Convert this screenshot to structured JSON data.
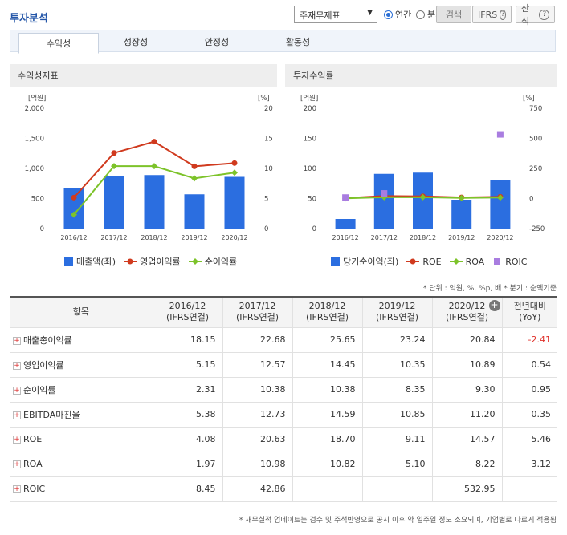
{
  "header": {
    "title": "투자분석",
    "statement_select": "주재무제표",
    "period_annual": "연간",
    "period_quarter": "분기",
    "search_label": "검색",
    "ifrs_label": "IFRS",
    "formula_label": "산식"
  },
  "tabs": [
    "수익성",
    "성장성",
    "안정성",
    "활동성"
  ],
  "left_panel": {
    "title": "수익성지표",
    "left_unit": "[억원]",
    "right_unit": "[%]",
    "legend": [
      "매출액(좌)",
      "영업이익률",
      "순이익률"
    ]
  },
  "right_panel": {
    "title": "투자수익률",
    "left_unit": "[억원]",
    "right_unit": "[%]",
    "legend": [
      "당기순이익(좌)",
      "ROE",
      "ROA",
      "ROIC"
    ]
  },
  "colors": {
    "bar": "#2b6ee0",
    "op_margin": "#d03a1e",
    "net_margin": "#7dc32a",
    "roe": "#d03a1e",
    "roa": "#7dc32a",
    "roic": "#a97de0"
  },
  "chart_data": [
    {
      "type": "bar",
      "categories": [
        "2016/12",
        "2017/12",
        "2018/12",
        "2019/12",
        "2020/12"
      ],
      "y_left_ticks": [
        "0",
        "500",
        "1,000",
        "1,500",
        "2,000"
      ],
      "y_right_ticks": [
        "0",
        "5",
        "10",
        "15",
        "20"
      ],
      "ylim_left": [
        0,
        2000
      ],
      "ylim_right": [
        0,
        20
      ],
      "series": [
        {
          "name": "매출액(좌)",
          "type": "bar",
          "axis": "left",
          "values": [
            680,
            880,
            890,
            570,
            860
          ]
        },
        {
          "name": "영업이익률",
          "type": "line",
          "axis": "right",
          "values": [
            5.15,
            12.57,
            14.45,
            10.35,
            10.89
          ]
        },
        {
          "name": "순이익률",
          "type": "line",
          "axis": "right",
          "values": [
            2.31,
            10.38,
            10.38,
            8.35,
            9.3
          ]
        }
      ]
    },
    {
      "type": "bar",
      "categories": [
        "2016/12",
        "2017/12",
        "2018/12",
        "2019/12",
        "2020/12"
      ],
      "y_left_ticks": [
        "0",
        "50",
        "100",
        "150",
        "200"
      ],
      "y_right_ticks": [
        "-250",
        "0",
        "250",
        "500",
        "750"
      ],
      "ylim_left": [
        0,
        200
      ],
      "ylim_right": [
        -250,
        750
      ],
      "series": [
        {
          "name": "당기순이익(좌)",
          "type": "bar",
          "axis": "left",
          "values": [
            16,
            91,
            93,
            48,
            80
          ]
        },
        {
          "name": "ROE",
          "type": "line",
          "axis": "right",
          "values": [
            4.08,
            20.63,
            18.7,
            9.11,
            14.57
          ]
        },
        {
          "name": "ROA",
          "type": "line",
          "axis": "right",
          "values": [
            1.97,
            10.98,
            10.82,
            5.1,
            8.22
          ]
        },
        {
          "name": "ROIC",
          "type": "scatter",
          "axis": "right",
          "values": [
            8.45,
            42.86,
            null,
            null,
            532.95
          ]
        }
      ]
    }
  ],
  "unit_note": "* 단위 : 억원, %, %p, 배  * 분기 : 순액기준",
  "table": {
    "header_item": "항목",
    "columns": [
      {
        "year": "2016/12",
        "basis": "(IFRS연결)"
      },
      {
        "year": "2017/12",
        "basis": "(IFRS연결)"
      },
      {
        "year": "2018/12",
        "basis": "(IFRS연결)"
      },
      {
        "year": "2019/12",
        "basis": "(IFRS연결)"
      },
      {
        "year": "2020/12",
        "basis": "(IFRS연결)"
      }
    ],
    "yoy_header": "전년대비",
    "yoy_sub": "(YoY)",
    "rows": [
      {
        "label": "매출총이익률",
        "values": [
          "18.15",
          "22.68",
          "25.65",
          "23.24",
          "20.84"
        ],
        "yoy": "-2.41",
        "neg": true
      },
      {
        "label": "영업이익률",
        "values": [
          "5.15",
          "12.57",
          "14.45",
          "10.35",
          "10.89"
        ],
        "yoy": "0.54",
        "neg": false
      },
      {
        "label": "순이익률",
        "values": [
          "2.31",
          "10.38",
          "10.38",
          "8.35",
          "9.30"
        ],
        "yoy": "0.95",
        "neg": false
      },
      {
        "label": "EBITDA마진율",
        "values": [
          "5.38",
          "12.73",
          "14.59",
          "10.85",
          "11.20"
        ],
        "yoy": "0.35",
        "neg": false
      },
      {
        "label": "ROE",
        "values": [
          "4.08",
          "20.63",
          "18.70",
          "9.11",
          "14.57"
        ],
        "yoy": "5.46",
        "neg": false
      },
      {
        "label": "ROA",
        "values": [
          "1.97",
          "10.98",
          "10.82",
          "5.10",
          "8.22"
        ],
        "yoy": "3.12",
        "neg": false
      },
      {
        "label": "ROIC",
        "values": [
          "8.45",
          "42.86",
          "",
          "",
          "532.95"
        ],
        "yoy": "",
        "neg": false
      }
    ]
  },
  "footer_note": "* 재무실적 업데이트는 검수 및 주석반영으로 공시 이후 약 일주일 정도 소요되며, 기업별로 다르게 적용됨"
}
